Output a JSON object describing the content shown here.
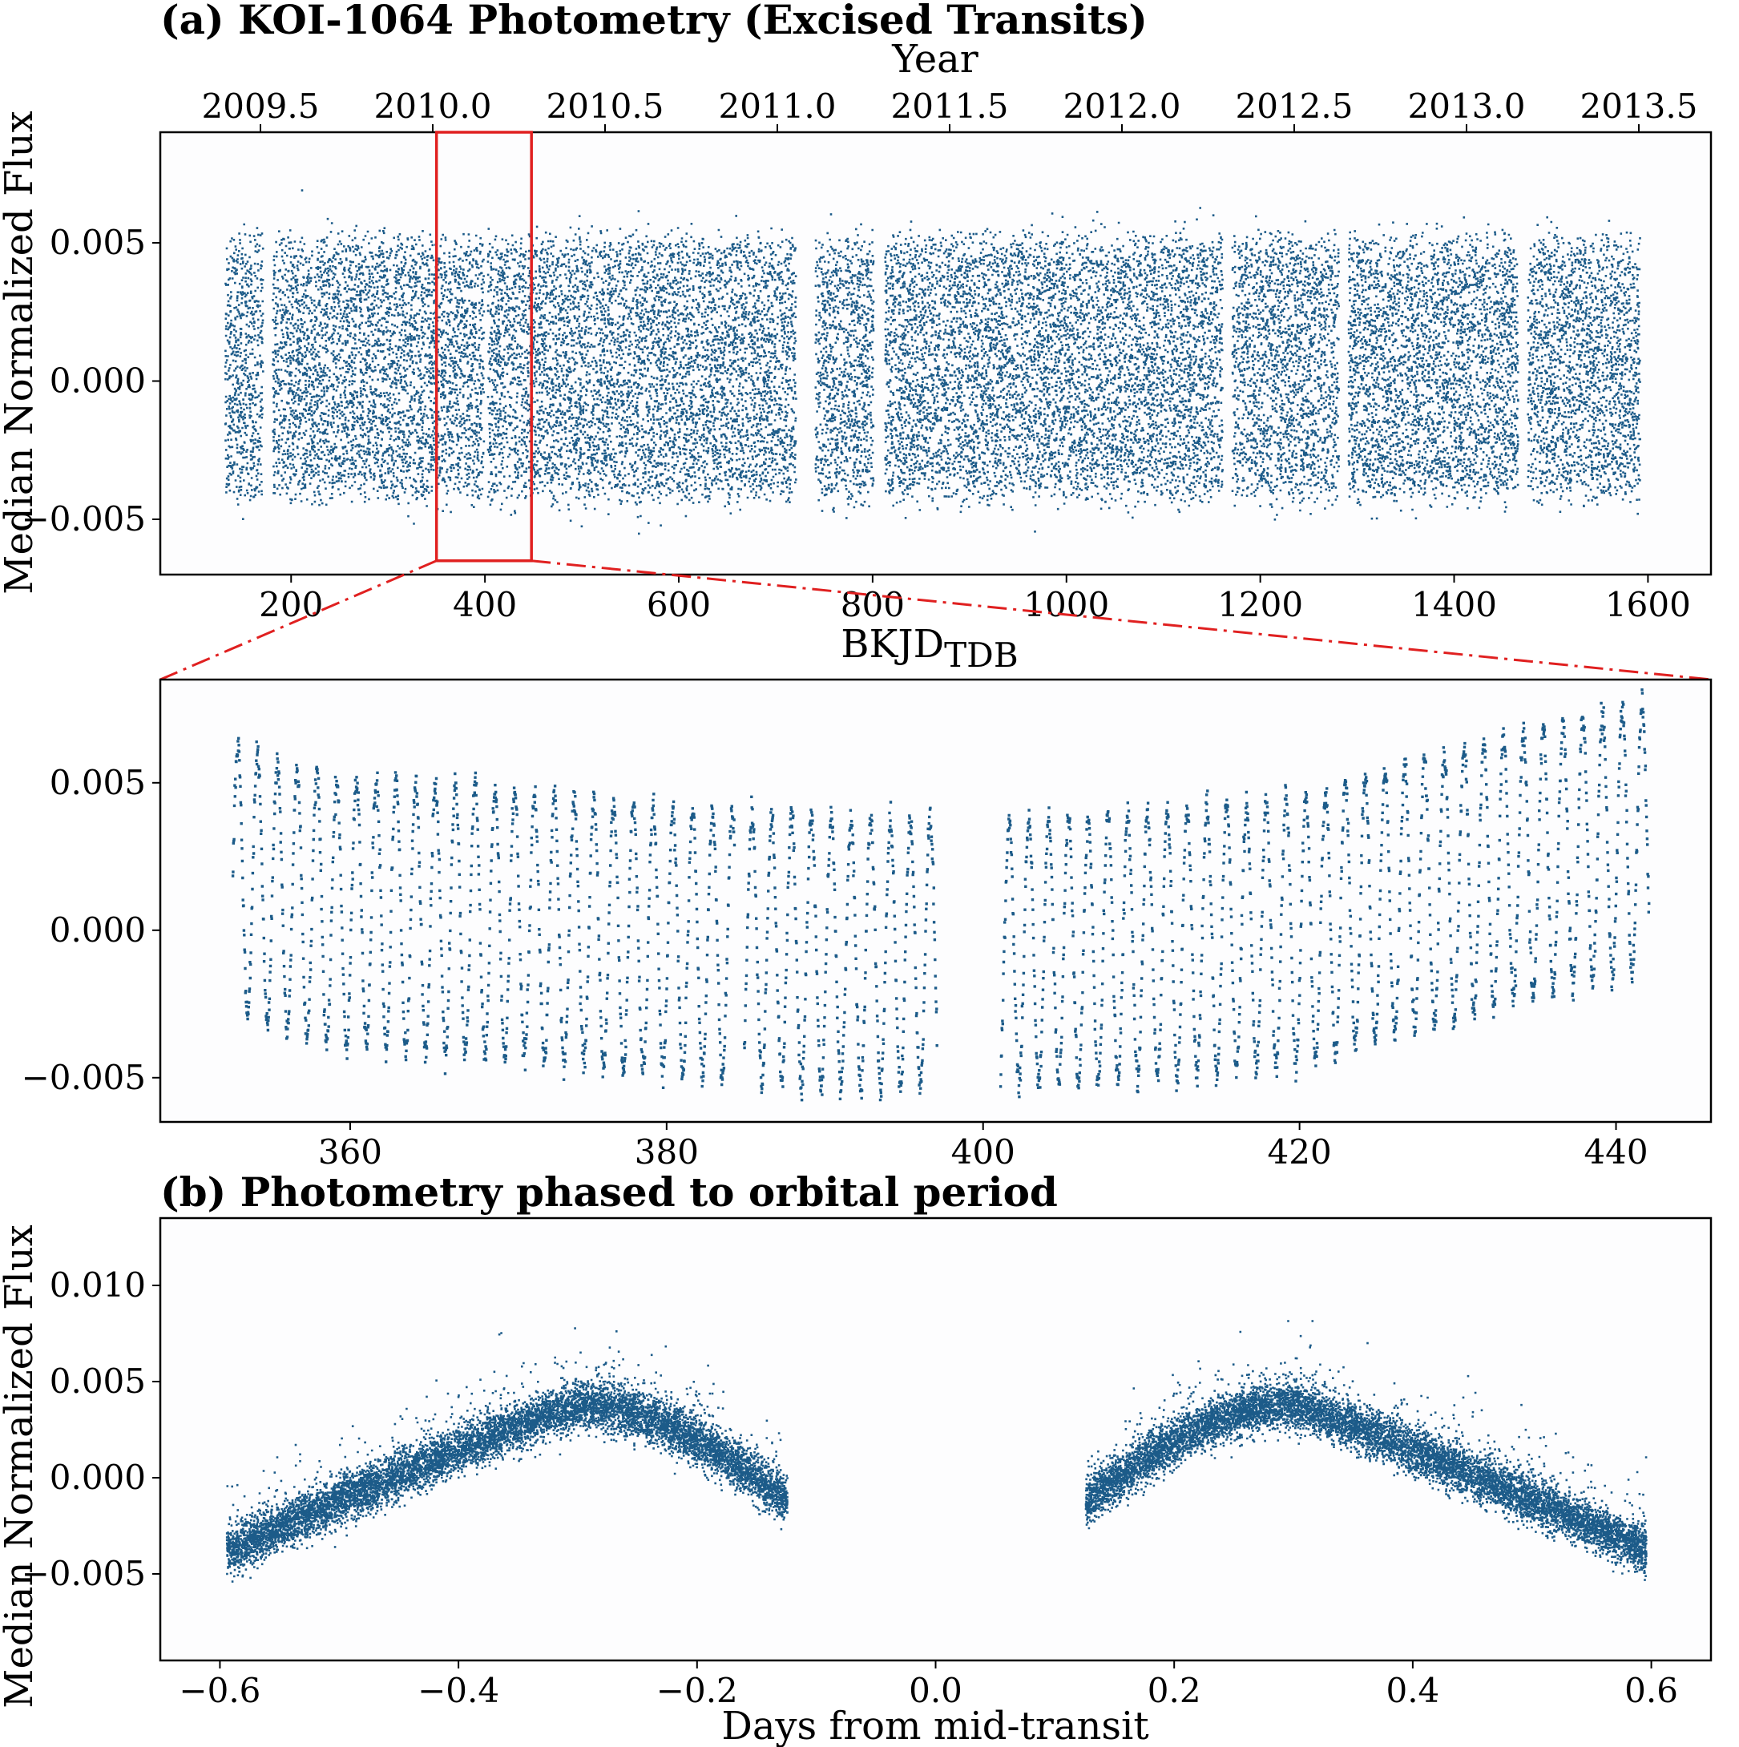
{
  "colors": {
    "points": "#1c5b89",
    "zoom_box": "#e02020",
    "frame": "#000000"
  },
  "chart_data": [
    {
      "name": "panel-a-full",
      "type": "scatter",
      "title": "(a) KOI-1064 Photometry (Excised Transits)",
      "xlabel": "BKJD",
      "xlabel_sub": "TDB",
      "ylabel": "Median Normalized Flux",
      "top_xlabel": "Year",
      "xlim": [
        65,
        1665
      ],
      "ylim": [
        -0.007,
        0.009
      ],
      "xticks": [
        200,
        400,
        600,
        800,
        1000,
        1200,
        1400,
        1600
      ],
      "yticks": [
        -0.005,
        0.0,
        0.005
      ],
      "ytick_labels": [
        "−0.005",
        "0.000",
        "0.005"
      ],
      "top_ticks": [
        2009.5,
        2010.0,
        2010.5,
        2011.0,
        2011.5,
        2012.0,
        2012.5,
        2013.0,
        2013.5
      ],
      "top_tick_labels": [
        "2009.5",
        "2010.0",
        "2010.5",
        "2011.0",
        "2011.5",
        "2012.0",
        "2012.5",
        "2013.0",
        "2013.5"
      ],
      "data_range": [
        131,
        1591
      ],
      "gaps": [
        [
          170,
          180
        ],
        [
          398,
          402
        ],
        [
          720,
          740
        ],
        [
          800,
          812
        ],
        [
          1160,
          1170
        ],
        [
          1280,
          1290
        ],
        [
          1465,
          1475
        ]
      ],
      "typical_band": [
        -0.004,
        0.005
      ],
      "zoom_box": {
        "x": [
          350,
          448
        ],
        "y": [
          -0.0065,
          0.009
        ]
      }
    },
    {
      "name": "panel-a-zoom",
      "type": "scatter",
      "xlim": [
        348,
        446
      ],
      "ylim": [
        -0.0065,
        0.0085
      ],
      "xticks": [
        360,
        380,
        400,
        420,
        440
      ],
      "yticks": [
        -0.005,
        0.0,
        0.005
      ],
      "ytick_labels": [
        "−0.005",
        "0.000",
        "0.005"
      ],
      "data_range": [
        352.5,
        442
      ],
      "gaps": [
        [
          384.2,
          384.8
        ],
        [
          397,
          401
        ]
      ],
      "oscillation_period_days": 1.25
    },
    {
      "name": "panel-b-phased",
      "type": "scatter",
      "title": "(b) Photometry phased to orbital period",
      "xlabel": "Days from mid-transit",
      "ylabel": "Median Normalized Flux",
      "xlim": [
        -0.65,
        0.65
      ],
      "ylim": [
        -0.0095,
        0.0135
      ],
      "xticks": [
        -0.6,
        -0.4,
        -0.2,
        0.0,
        0.2,
        0.4,
        0.6
      ],
      "xtick_labels": [
        "−0.6",
        "−0.4",
        "−0.2",
        "0.0",
        "0.2",
        "0.4",
        "0.6"
      ],
      "yticks": [
        -0.005,
        0.0,
        0.005,
        0.01
      ],
      "ytick_labels": [
        "−0.005",
        "0.000",
        "0.005",
        "0.010"
      ],
      "segments": [
        [
          -0.595,
          -0.125
        ],
        [
          0.125,
          0.595
        ]
      ],
      "peak_phase": 0.3,
      "peak_flux": 0.0038,
      "edge_flux": -0.0038,
      "inner_flux": -0.0012
    }
  ]
}
